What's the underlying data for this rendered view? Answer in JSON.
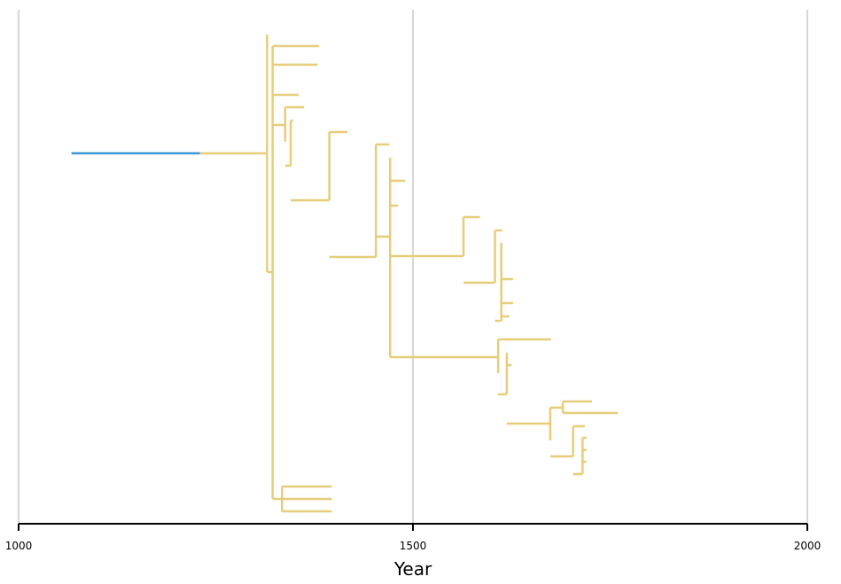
{
  "chart_data": {
    "type": "tree",
    "xlabel": "Year",
    "xlim": [
      1000,
      2000
    ],
    "x_ticks": [
      "1000",
      "1500",
      "2000"
    ],
    "grid": true,
    "colors": {
      "root_branch": "#3a97d8",
      "branches": "#e6cd79"
    },
    "root": {
      "start_year": 1067,
      "end_year": 1230
    },
    "nodes": [
      {
        "id": "n1",
        "year": 1315,
        "children": [
          {
            "id": "n2",
            "year": 1322,
            "children": [
              {
                "id": "l1",
                "year": 1381
              },
              {
                "id": "l2",
                "year": 1379
              },
              {
                "id": "l3",
                "year": 1355
              },
              {
                "id": "n3",
                "year": 1338,
                "children": [
                  {
                    "id": "l4",
                    "year": 1362
                  },
                  {
                    "id": "n4",
                    "year": 1345,
                    "children": [
                      {
                        "id": "l5",
                        "year": 1348
                      },
                      {
                        "id": "n5",
                        "year": 1394,
                        "children": [
                          {
                            "id": "l6",
                            "year": 1417
                          },
                          {
                            "id": "n6",
                            "year": 1453,
                            "children": [
                              {
                                "id": "l7",
                                "year": 1470
                              },
                              {
                                "id": "n7",
                                "year": 1471,
                                "children": [
                                  {
                                    "id": "l8",
                                    "year": 1490
                                  },
                                  {
                                    "id": "l9",
                                    "year": 1481
                                  },
                                  {
                                    "id": "n8",
                                    "year": 1564,
                                    "children": [
                                      {
                                        "id": "l10",
                                        "year": 1585
                                      },
                                      {
                                        "id": "n9",
                                        "year": 1604,
                                        "children": [
                                          {
                                            "id": "l11",
                                            "year": 1613
                                          },
                                          {
                                            "id": "n10",
                                            "year": 1612,
                                            "children": [
                                              {
                                                "id": "l12",
                                                "year": 1627
                                              },
                                              {
                                                "id": "l13",
                                                "year": 1627
                                              },
                                              {
                                                "id": "l14",
                                                "year": 1622
                                              }
                                            ]
                                          }
                                        ]
                                      }
                                    ]
                                  },
                                  {
                                    "id": "n11",
                                    "year": 1608,
                                    "children": [
                                      {
                                        "id": "l15",
                                        "year": 1675
                                      },
                                      {
                                        "id": "n12",
                                        "year": 1619,
                                        "children": [
                                          {
                                            "id": "l16",
                                            "year": 1625
                                          },
                                          {
                                            "id": "n13",
                                            "year": 1674,
                                            "children": [
                                              {
                                                "id": "n14",
                                                "year": 1690,
                                                "children": [
                                                  {
                                                    "id": "l17",
                                                    "year": 1727
                                                  },
                                                  {
                                                    "id": "l18",
                                                    "year": 1760
                                                  }
                                                ]
                                              },
                                              {
                                                "id": "n15",
                                                "year": 1703,
                                                "children": [
                                                  {
                                                    "id": "l19",
                                                    "year": 1718
                                                  },
                                                  {
                                                    "id": "n16",
                                                    "year": 1715,
                                                    "children": [
                                                      {
                                                        "id": "l20",
                                                        "year": 1720
                                                      },
                                                      {
                                                        "id": "l21",
                                                        "year": 1720
                                                      },
                                                      {
                                                        "id": "l22",
                                                        "year": 1720
                                                      }
                                                    ]
                                                  }
                                                ]
                                              }
                                            ]
                                          }
                                        ]
                                      }
                                    ]
                                  }
                                ]
                              }
                            ]
                          }
                        ]
                      }
                    ]
                  }
                ]
              },
              {
                "id": "n17",
                "year": 1334,
                "children": [
                  {
                    "id": "l23",
                    "year": 1397
                  },
                  {
                    "id": "l24",
                    "year": 1397
                  },
                  {
                    "id": "l25",
                    "year": 1397
                  }
                ]
              }
            ]
          }
        ]
      }
    ]
  }
}
